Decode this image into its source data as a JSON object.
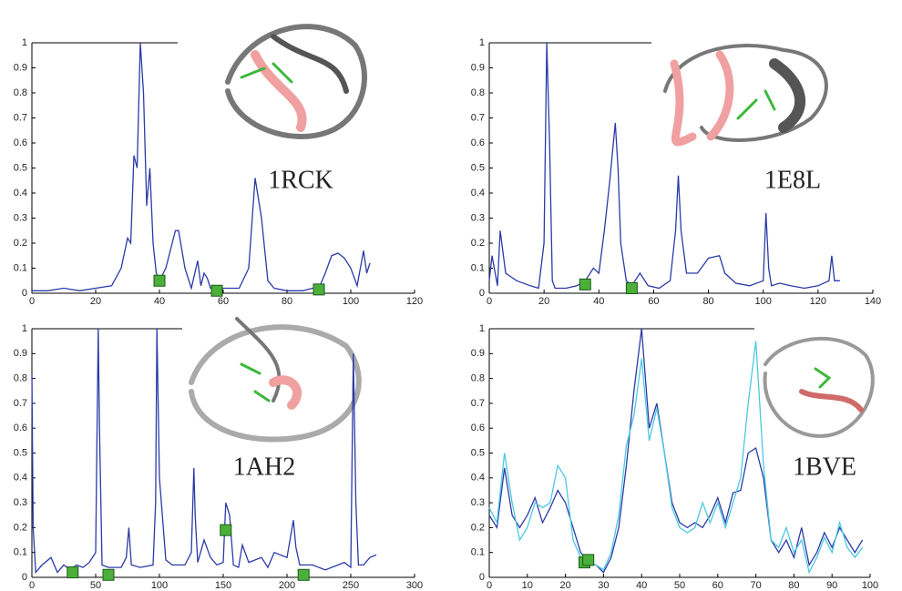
{
  "chart_data": [
    {
      "type": "line",
      "annotation": "1RCK",
      "x": [
        0,
        5,
        10,
        15,
        20,
        25,
        28,
        30,
        31,
        32,
        33,
        34,
        35,
        36,
        37,
        38,
        39,
        40,
        42,
        44,
        45,
        46,
        48,
        50,
        52,
        53,
        54,
        55,
        56,
        58,
        60,
        65,
        68,
        70,
        72,
        74,
        76,
        80,
        85,
        88,
        90,
        92,
        94,
        96,
        98,
        100,
        102,
        104,
        105,
        106
      ],
      "series": [
        {
          "color": "#2b3aa8",
          "values": [
            0.01,
            0.01,
            0.02,
            0.01,
            0.02,
            0.03,
            0.1,
            0.22,
            0.2,
            0.55,
            0.5,
            1.0,
            0.8,
            0.35,
            0.5,
            0.2,
            0.08,
            0.05,
            0.1,
            0.2,
            0.25,
            0.25,
            0.1,
            0.02,
            0.13,
            0.03,
            0.08,
            0.06,
            0.02,
            0.01,
            0.02,
            0.02,
            0.1,
            0.46,
            0.3,
            0.05,
            0.02,
            0.01,
            0.01,
            0.02,
            0.02,
            0.08,
            0.15,
            0.16,
            0.14,
            0.1,
            0.03,
            0.17,
            0.08,
            0.12
          ]
        }
      ],
      "markers": {
        "color": "#4caf3a",
        "x": [
          40,
          58,
          90
        ],
        "y": [
          0.05,
          0.01,
          0.015
        ]
      },
      "xlim": [
        0,
        120
      ],
      "ylim": [
        0,
        1
      ],
      "xticks": [
        0,
        20,
        40,
        60,
        80,
        100,
        120
      ],
      "yticks": [
        0,
        0.1,
        0.2,
        0.3,
        0.4,
        0.5,
        0.6,
        0.7,
        0.8,
        0.9,
        1
      ]
    },
    {
      "type": "line",
      "annotation": "1E8L",
      "x": [
        0,
        1,
        3,
        4,
        6,
        10,
        15,
        18,
        20,
        21,
        22,
        23,
        24,
        28,
        32,
        35,
        38,
        40,
        42,
        44,
        46,
        47,
        48,
        50,
        52,
        55,
        58,
        62,
        66,
        68,
        69,
        70,
        72,
        76,
        80,
        84,
        86,
        90,
        95,
        100,
        101,
        102,
        103,
        106,
        110,
        115,
        120,
        124,
        125,
        126,
        128
      ],
      "series": [
        {
          "color": "#2b3aa8",
          "values": [
            0.05,
            0.15,
            0.03,
            0.25,
            0.08,
            0.05,
            0.03,
            0.02,
            0.2,
            1.0,
            0.6,
            0.05,
            0.02,
            0.02,
            0.03,
            0.05,
            0.1,
            0.08,
            0.25,
            0.45,
            0.68,
            0.5,
            0.2,
            0.05,
            0.03,
            0.08,
            0.03,
            0.02,
            0.05,
            0.25,
            0.47,
            0.25,
            0.08,
            0.08,
            0.14,
            0.15,
            0.08,
            0.04,
            0.03,
            0.05,
            0.32,
            0.1,
            0.03,
            0.04,
            0.03,
            0.02,
            0.03,
            0.05,
            0.15,
            0.05,
            0.05
          ]
        }
      ],
      "markers": {
        "color": "#4caf3a",
        "x": [
          35,
          52
        ],
        "y": [
          0.035,
          0.02
        ]
      },
      "xlim": [
        0,
        140
      ],
      "ylim": [
        0,
        1
      ],
      "xticks": [
        0,
        20,
        40,
        60,
        80,
        100,
        120,
        140
      ],
      "yticks": [
        0,
        0.1,
        0.2,
        0.3,
        0.4,
        0.5,
        0.6,
        0.7,
        0.8,
        0.9,
        1
      ]
    },
    {
      "type": "line",
      "annotation": "1AH2",
      "x": [
        0,
        1,
        3,
        8,
        15,
        20,
        25,
        30,
        35,
        40,
        45,
        50,
        52,
        53,
        55,
        60,
        70,
        74,
        76,
        78,
        85,
        95,
        97,
        98,
        100,
        105,
        110,
        120,
        125,
        127,
        128,
        130,
        135,
        140,
        145,
        150,
        152,
        155,
        158,
        162,
        165,
        170,
        180,
        185,
        190,
        200,
        205,
        207,
        210,
        220,
        230,
        240,
        245,
        250,
        252,
        254,
        256,
        260,
        265,
        270
      ],
      "series": [
        {
          "color": "#2b3aa8",
          "values": [
            0.82,
            0.2,
            0.02,
            0.05,
            0.08,
            0.02,
            0.05,
            0.03,
            0.05,
            0.04,
            0.06,
            0.1,
            1.0,
            0.6,
            0.05,
            0.04,
            0.04,
            0.08,
            0.2,
            0.05,
            0.04,
            0.05,
            0.3,
            1.0,
            0.4,
            0.07,
            0.05,
            0.05,
            0.1,
            0.44,
            0.25,
            0.06,
            0.15,
            0.08,
            0.05,
            0.06,
            0.3,
            0.25,
            0.05,
            0.04,
            0.13,
            0.06,
            0.08,
            0.04,
            0.1,
            0.08,
            0.23,
            0.12,
            0.05,
            0.05,
            0.03,
            0.05,
            0.06,
            0.04,
            0.9,
            0.3,
            0.05,
            0.05,
            0.08,
            0.09
          ]
        }
      ],
      "markers": {
        "color": "#4caf3a",
        "x": [
          32,
          60,
          152,
          213
        ],
        "y": [
          0.02,
          0.01,
          0.19,
          0.01
        ]
      },
      "xlim": [
        0,
        300
      ],
      "ylim": [
        0,
        1
      ],
      "xticks": [
        0,
        50,
        100,
        150,
        200,
        250,
        300
      ],
      "yticks": [
        0,
        0.1,
        0.2,
        0.3,
        0.4,
        0.5,
        0.6,
        0.7,
        0.8,
        0.9,
        1
      ]
    },
    {
      "type": "line",
      "annotation": "1BVE",
      "x": [
        0,
        2,
        4,
        6,
        8,
        10,
        12,
        14,
        16,
        18,
        20,
        22,
        24,
        26,
        28,
        30,
        32,
        34,
        36,
        38,
        40,
        42,
        44,
        46,
        48,
        50,
        52,
        54,
        56,
        58,
        60,
        62,
        64,
        66,
        68,
        70,
        72,
        74,
        76,
        78,
        80,
        82,
        84,
        86,
        88,
        90,
        92,
        94,
        96,
        98
      ],
      "series": [
        {
          "color": "#2b3aa8",
          "values": [
            0.25,
            0.2,
            0.44,
            0.25,
            0.2,
            0.25,
            0.32,
            0.22,
            0.28,
            0.35,
            0.3,
            0.2,
            0.1,
            0.06,
            0.05,
            0.02,
            0.08,
            0.2,
            0.45,
            0.75,
            1.0,
            0.6,
            0.7,
            0.5,
            0.3,
            0.22,
            0.2,
            0.22,
            0.2,
            0.25,
            0.32,
            0.22,
            0.34,
            0.35,
            0.5,
            0.52,
            0.4,
            0.15,
            0.1,
            0.15,
            0.08,
            0.2,
            0.05,
            0.1,
            0.18,
            0.12,
            0.2,
            0.15,
            0.1,
            0.15
          ]
        },
        {
          "color": "#4cc8e0",
          "values": [
            0.28,
            0.22,
            0.5,
            0.3,
            0.15,
            0.2,
            0.3,
            0.28,
            0.3,
            0.45,
            0.4,
            0.15,
            0.08,
            0.05,
            0.05,
            0.03,
            0.1,
            0.25,
            0.53,
            0.65,
            0.88,
            0.55,
            0.68,
            0.5,
            0.28,
            0.2,
            0.18,
            0.2,
            0.3,
            0.22,
            0.3,
            0.2,
            0.3,
            0.4,
            0.7,
            0.95,
            0.45,
            0.15,
            0.12,
            0.2,
            0.1,
            0.15,
            0.02,
            0.08,
            0.16,
            0.1,
            0.22,
            0.12,
            0.08,
            0.12
          ]
        }
      ],
      "markers": {
        "color": "#4caf3a",
        "x": [
          25,
          26
        ],
        "y": [
          0.06,
          0.07
        ]
      },
      "xlim": [
        0,
        100
      ],
      "ylim": [
        0,
        1
      ],
      "xticks": [
        0,
        10,
        20,
        30,
        40,
        50,
        60,
        70,
        80,
        90,
        100
      ],
      "yticks": [
        0,
        0.1,
        0.2,
        0.3,
        0.4,
        0.5,
        0.6,
        0.7,
        0.8,
        0.9,
        1
      ]
    }
  ]
}
